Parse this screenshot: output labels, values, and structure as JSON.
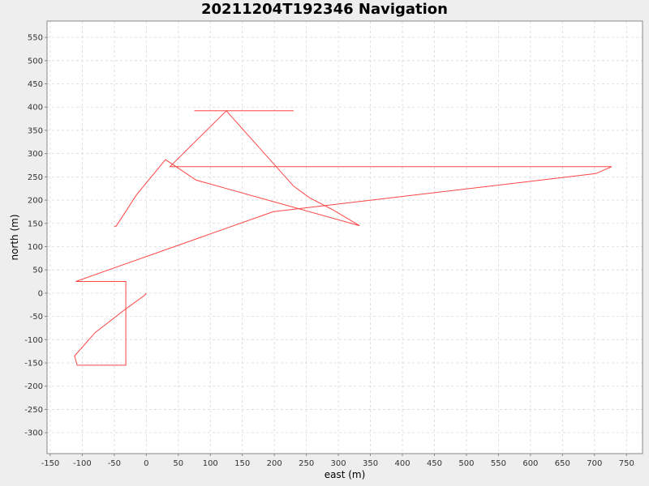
{
  "chart_data": {
    "type": "line",
    "title": "20211204T192346 Navigation",
    "xlabel": "east (m)",
    "ylabel": "north (m)",
    "xlim": [
      -155,
      775
    ],
    "ylim": [
      -345,
      585
    ],
    "x_ticks": [
      -150,
      -100,
      -50,
      0,
      50,
      100,
      150,
      200,
      250,
      300,
      350,
      400,
      450,
      500,
      550,
      600,
      650,
      700,
      750
    ],
    "y_ticks": [
      -300,
      -250,
      -200,
      -150,
      -100,
      -50,
      0,
      50,
      100,
      150,
      200,
      250,
      300,
      350,
      400,
      450,
      500,
      550
    ],
    "grid": true,
    "legend": "none",
    "colors": {
      "series": "#ff4444",
      "plot_background": "#ffffff",
      "grid": "#d8d8d8",
      "axis": "#888888"
    },
    "series": [
      {
        "x": [
          0,
          -3,
          -35,
          -80,
          -112,
          -108,
          -32,
          -32,
          -110,
          198,
          702,
          727,
          37,
          125,
          230,
          255,
          290,
          333,
          78,
          30,
          -15,
          -47,
          -50
        ],
        "y": [
          0,
          -5,
          -37,
          -85,
          -135,
          -155,
          -155,
          25,
          25,
          175,
          257,
          272,
          272,
          392,
          230,
          205,
          180,
          145,
          243,
          287,
          212,
          144,
          144
        ]
      },
      {
        "x": [
          75,
          230
        ],
        "y": [
          392,
          392
        ]
      }
    ]
  }
}
